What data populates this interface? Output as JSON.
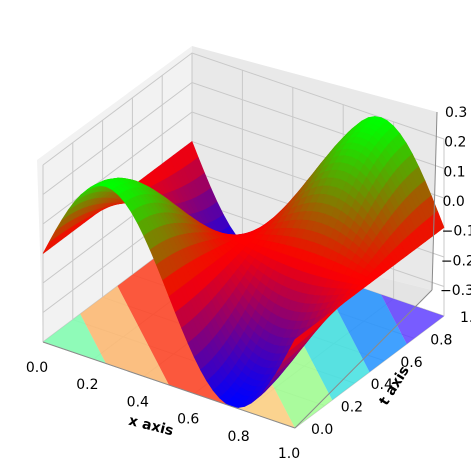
{
  "chart_data": {
    "type": "surface",
    "title": "",
    "xlabel": "x axis",
    "ylabel": "t axis",
    "zlabel": "",
    "xlim": [
      0.0,
      1.0
    ],
    "ylim": [
      0.0,
      1.0
    ],
    "zlim": [
      -0.3,
      0.3
    ],
    "x_ticks": [
      "0.0",
      "0.2",
      "0.4",
      "0.6",
      "0.8",
      "1.0"
    ],
    "y_ticks": [
      "0.0",
      "0.2",
      "0.4",
      "0.6",
      "0.8",
      "1.0"
    ],
    "z_ticks": [
      "−0.3",
      "−0.2",
      "−0.1",
      "0.0",
      "0.1",
      "0.2",
      "0.3"
    ],
    "grid": true,
    "legend": "none",
    "surface_description": "z(x,t) = 0.3*sin(2*pi*x)*cos(pi*t) plotted on the x-t domain [0,1]x[0,1]",
    "surface_amplitude": 0.3,
    "surface_colormap": [
      "#00ff00",
      "#ff0000",
      "#0000ff"
    ],
    "floor_contour_colors": [
      "#80ffb0",
      "#ffb870",
      "#ff4020",
      "#ffd080",
      "#a0ff90",
      "#40e0e0",
      "#2090ff",
      "#6040ff"
    ]
  }
}
